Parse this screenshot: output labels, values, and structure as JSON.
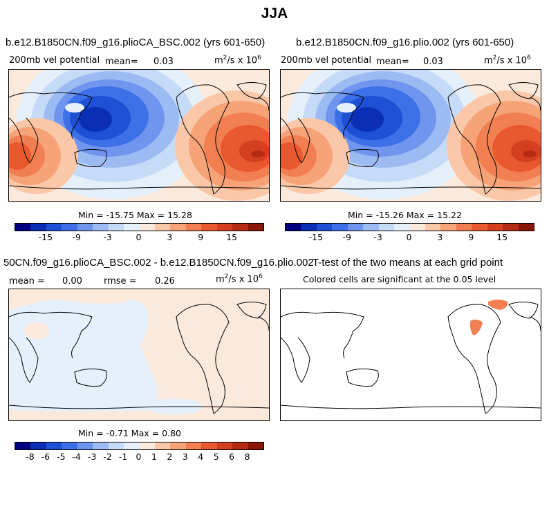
{
  "title": "JJA",
  "colors": {
    "land": "#000000",
    "palette18": [
      "#00007f",
      "#0a2fb5",
      "#1e50d6",
      "#3d6fe6",
      "#6f95ee",
      "#9dbbf3",
      "#c6dbf8",
      "#e6f0fb",
      "#fbe9dc",
      "#fac8a8",
      "#f7a378",
      "#f27f51",
      "#e8592f",
      "#d4401f",
      "#b42a12",
      "#8a1606"
    ],
    "palette16": [
      "#00007f",
      "#0a2fb5",
      "#1e50d6",
      "#3d6fe6",
      "#6f95ee",
      "#9dbbf3",
      "#c6dbf8",
      "#e6f0fb",
      "#fbe9dc",
      "#fac8a8",
      "#f7a378",
      "#f27f51",
      "#e8592f",
      "#d4401f",
      "#b42a12",
      "#8a1606"
    ]
  },
  "panels": {
    "p1": {
      "title": "b.e12.B1850CN.f09_g16.plioCA_BSC.002 (yrs 601-650)",
      "left_label": "200mb vel potential",
      "mean_label": "mean=",
      "mean_value": "0.03",
      "units_base": "m",
      "units_sup": "2",
      "units_mid": "/s x 10",
      "units_sup2": "6",
      "minmax": "Min = -15.75 Max =  15.28"
    },
    "p2": {
      "title": "b.e12.B1850CN.f09_g16.plio.002 (yrs 601-650)",
      "left_label": "200mb vel potential",
      "mean_label": "mean=",
      "mean_value": "0.03",
      "units_base": "m",
      "units_sup": "2",
      "units_mid": "/s x 10",
      "units_sup2": "6",
      "minmax": "Min = -15.26 Max =  15.22"
    },
    "p3": {
      "title": "50CN.f09_g16.plioCA_BSC.002 - b.e12.B1850CN.f09_g16.plio.002",
      "mean_label": "mean =",
      "mean_value": "0.00",
      "rmse_label": "rmse =",
      "rmse_value": "0.26",
      "units_base": "m",
      "units_sup": "2",
      "units_mid": "/s x 10",
      "units_sup2": "6",
      "minmax": "Min = -0.71 Max =  0.80"
    },
    "p4": {
      "title": "T-test of the two means at each grid point",
      "subtitle": "Colored cells are significant at the 0.05 level"
    }
  },
  "chart_data": [
    {
      "type": "heatmap",
      "title": "b.e12.B1850CN.f09_g16.plioCA_BSC.002 (yrs 601-650)",
      "variable": "200mb vel potential",
      "units": "m^2/s x 10^6",
      "mean": 0.03,
      "min": -15.75,
      "max": 15.28,
      "colorbar_ticks": [
        "-15",
        "-9",
        "-3",
        "0",
        "3",
        "9",
        "15"
      ]
    },
    {
      "type": "heatmap",
      "title": "b.e12.B1850CN.f09_g16.plio.002 (yrs 601-650)",
      "variable": "200mb vel potential",
      "units": "m^2/s x 10^6",
      "mean": 0.03,
      "min": -15.26,
      "max": 15.22,
      "colorbar_ticks": [
        "-15",
        "-9",
        "-3",
        "0",
        "3",
        "9",
        "15"
      ]
    },
    {
      "type": "heatmap",
      "title": "50CN.f09_g16.plioCA_BSC.002 - b.e12.B1850CN.f09_g16.plio.002",
      "units": "m^2/s x 10^6",
      "mean": 0.0,
      "rmse": 0.26,
      "min": -0.71,
      "max": 0.8,
      "colorbar_ticks": [
        "-8",
        "-6",
        "-5",
        "-4",
        "-3",
        "-2",
        "-1",
        "0",
        "1",
        "2",
        "3",
        "4",
        "5",
        "6",
        "8"
      ]
    },
    {
      "type": "heatmap",
      "title": "T-test of the two means at each grid point",
      "note": "Colored cells are significant at the 0.05 level"
    }
  ]
}
